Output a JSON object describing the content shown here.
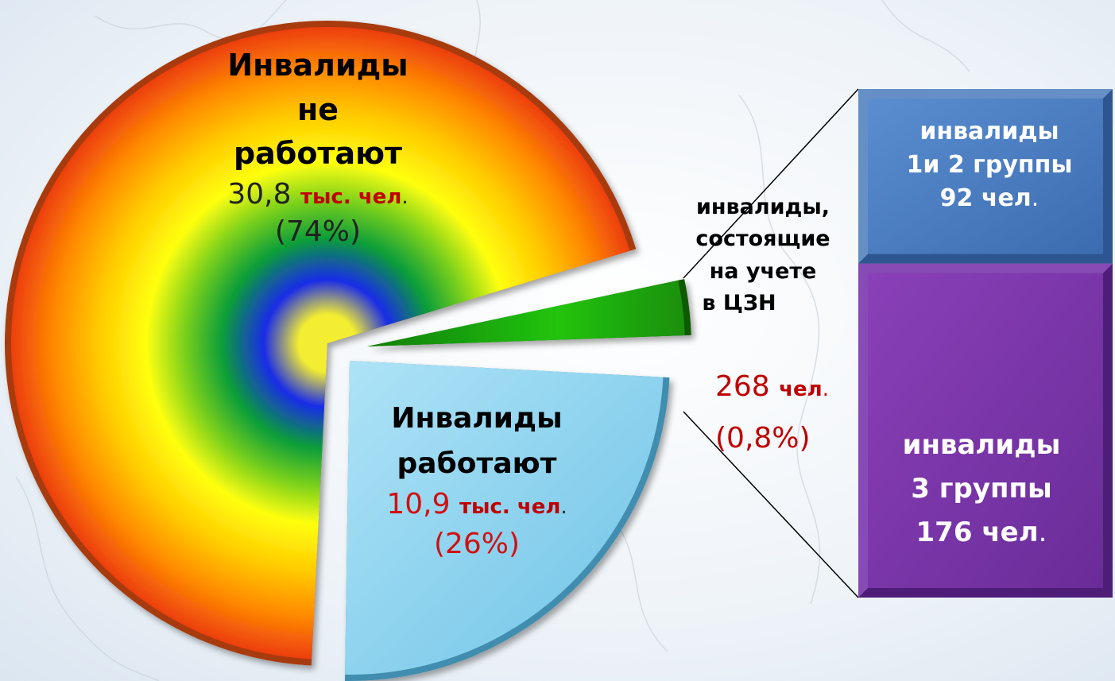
{
  "chart_data": [
    {
      "type": "pie",
      "slices": [
        {
          "label_lines": [
            "Инвалиды",
            "не",
            "работают"
          ],
          "value_number": "30,8",
          "value_unit": "тыс. чел",
          "value_dot": ".",
          "percent_text": "(74%)",
          "percent": 74,
          "fill": "rainbow-radial",
          "value_color": "#222222",
          "unit_color": "#c00000"
        },
        {
          "label_lines": [
            "Инвалиды",
            "работают"
          ],
          "value_number": "10,9",
          "value_unit": "тыс. чел",
          "value_dot": ".",
          "percent_text": "(26%)",
          "percent": 26,
          "fill": "#7fcdec",
          "value_color": "#d01010",
          "unit_color": "#c00000"
        },
        {
          "label_lines": [
            "инвалиды,",
            "состоящие",
            "на учете",
            "в ЦЗН"
          ],
          "value_number": "268",
          "value_unit": "чел",
          "value_dot": ".",
          "percent_text": "(0,8%)",
          "percent": 0.8,
          "fill": "#22c40a",
          "value_color": "#c00000",
          "unit_color": "#c00000"
        }
      ]
    },
    {
      "type": "bar",
      "stacked": true,
      "segments": [
        {
          "label_lines": [
            "инвалиды",
            "1и 2 группы"
          ],
          "value_number": "92",
          "value_unit": "чел",
          "value_dot": ".",
          "value": 92,
          "fill": "#4a7cc0"
        },
        {
          "label_lines": [
            "инвалиды",
            "3 группы"
          ],
          "value_number": "176",
          "value_unit": "чел",
          "value_dot": ".",
          "value": 176,
          "fill": "#7a33a8"
        }
      ]
    }
  ]
}
